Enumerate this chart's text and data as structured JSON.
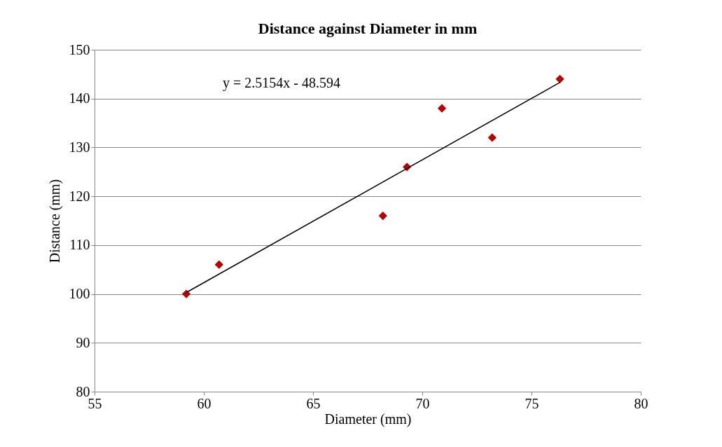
{
  "chart_data": {
    "type": "scatter",
    "title": "Distance against Diameter in mm",
    "xlabel": "Diameter (mm)",
    "ylabel": "Distance (mm)",
    "xlim": [
      55,
      80
    ],
    "xticks": [
      55,
      60,
      65,
      70,
      75,
      80
    ],
    "ylim": [
      80,
      150
    ],
    "yticks": [
      80,
      90,
      100,
      110,
      120,
      130,
      140,
      150
    ],
    "grid": "y",
    "marker": "diamond",
    "annotations": [
      "y = 2.5154x - 48.594"
    ],
    "series": [
      {
        "color": "#c00000",
        "x": [
          59.2,
          60.7,
          68.2,
          69.3,
          70.9,
          73.2,
          76.3
        ],
        "values": [
          100,
          106,
          116,
          126,
          138,
          132,
          144
        ]
      },
      {
        "type": "line",
        "marker": "none",
        "color": "#000000",
        "x": [
          59.2,
          76.3
        ],
        "values": [
          100.3,
          143.3
        ]
      }
    ]
  }
}
